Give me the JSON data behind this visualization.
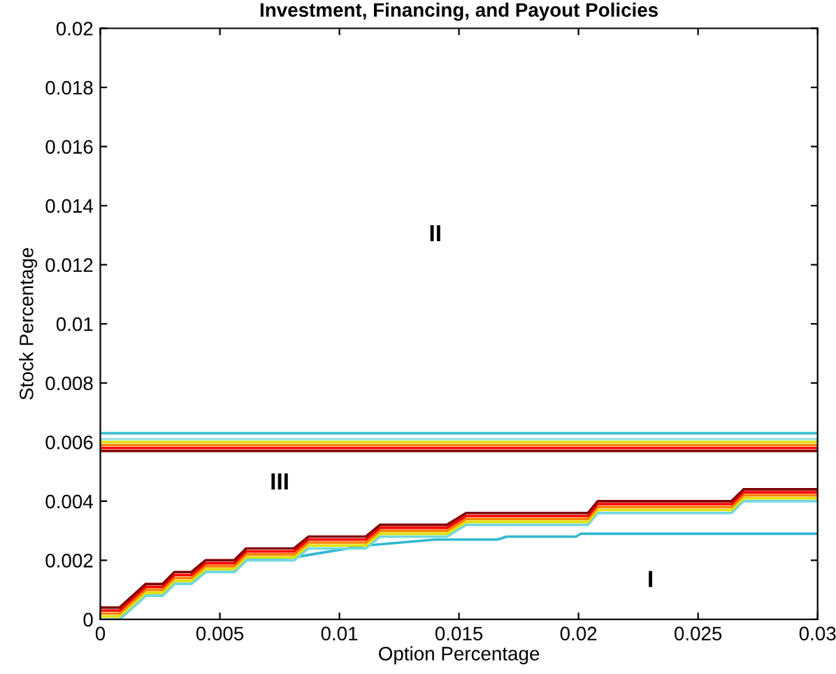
{
  "chart_data": {
    "type": "line",
    "title": "Investment, Financing, and Payout Policies",
    "xlabel": "Option Percentage",
    "ylabel": "Stock Percentage",
    "xlim": [
      0,
      0.03
    ],
    "xticks": [
      0,
      0.005,
      0.01,
      0.015,
      0.02,
      0.025,
      0.03
    ],
    "ylim": [
      0,
      0.02
    ],
    "yticks": [
      0,
      0.002,
      0.004,
      0.006,
      0.008,
      0.01,
      0.012,
      0.014,
      0.016,
      0.018,
      0.02
    ],
    "grid": false,
    "legend": false,
    "marker": "none",
    "line_style": "solid",
    "annotations": [
      "II",
      "III",
      "I"
    ],
    "series": [
      {
        "color": "#40c0d0",
        "x": [
          0,
          0.03
        ],
        "values": [
          0.0063,
          0.0063
        ]
      },
      {
        "color": "#a0e0e0",
        "x": [
          0,
          0.03
        ],
        "values": [
          0.0061,
          0.0061
        ]
      },
      {
        "color": "#e0e000",
        "x": [
          0,
          0.03
        ],
        "values": [
          0.006,
          0.006
        ]
      },
      {
        "color": "#ff8000",
        "x": [
          0,
          0.03
        ],
        "values": [
          0.0059,
          0.0059
        ]
      },
      {
        "color": "#ff0000",
        "x": [
          0,
          0.03
        ],
        "values": [
          0.0058,
          0.0058
        ]
      },
      {
        "color": "#800000",
        "x": [
          0,
          0.03
        ],
        "values": [
          0.0057,
          0.0057
        ]
      },
      {
        "color": "#30b8d0",
        "x": [
          0,
          0.0008,
          0.0019,
          0.0026,
          0.0031,
          0.0038,
          0.0044,
          0.0056,
          0.0061,
          0.0081,
          0.0111,
          0.014,
          0.0166,
          0.017,
          0.0199,
          0.0201,
          0.03
        ],
        "values": [
          0,
          0,
          0.0008,
          0.0008,
          0.0012,
          0.0012,
          0.0016,
          0.0016,
          0.002,
          0.0021,
          0.0025,
          0.0027,
          0.0027,
          0.0028,
          0.0028,
          0.0029,
          0.0029
        ]
      },
      {
        "color": "#70d8e0",
        "x": [
          0,
          0.0008,
          0.0019,
          0.0026,
          0.0031,
          0.0038,
          0.0044,
          0.0056,
          0.0061,
          0.0081,
          0.0087,
          0.0111,
          0.0117,
          0.0145,
          0.0153,
          0.0204,
          0.0208,
          0.0264,
          0.0269,
          0.03
        ],
        "values": [
          0,
          0,
          0.0008,
          0.0008,
          0.0012,
          0.0012,
          0.0016,
          0.0016,
          0.002,
          0.002,
          0.0024,
          0.0024,
          0.0028,
          0.0028,
          0.0032,
          0.0032,
          0.0036,
          0.0036,
          0.004,
          0.004
        ]
      },
      {
        "color": "#e0e000",
        "x": [
          0,
          0.0008,
          0.0019,
          0.0026,
          0.0031,
          0.0038,
          0.0044,
          0.0056,
          0.0061,
          0.0081,
          0.0087,
          0.0111,
          0.0117,
          0.0145,
          0.0153,
          0.0204,
          0.0208,
          0.0264,
          0.0269,
          0.03
        ],
        "values": [
          0.0001,
          0.0001,
          0.0009,
          0.0009,
          0.0013,
          0.0013,
          0.0017,
          0.0017,
          0.0021,
          0.0021,
          0.0025,
          0.0025,
          0.0029,
          0.0029,
          0.0033,
          0.0033,
          0.0037,
          0.0037,
          0.0041,
          0.0041
        ]
      },
      {
        "color": "#ff8000",
        "x": [
          0,
          0.0008,
          0.0019,
          0.0026,
          0.0031,
          0.0038,
          0.0044,
          0.0056,
          0.0061,
          0.0081,
          0.0087,
          0.0111,
          0.0117,
          0.0145,
          0.0153,
          0.0204,
          0.0208,
          0.0264,
          0.0269,
          0.03
        ],
        "values": [
          0.0002,
          0.0002,
          0.001,
          0.001,
          0.0014,
          0.0014,
          0.0018,
          0.0018,
          0.0022,
          0.0022,
          0.0026,
          0.0026,
          0.003,
          0.003,
          0.0034,
          0.0034,
          0.0038,
          0.0038,
          0.0042,
          0.0042
        ]
      },
      {
        "color": "#ff0000",
        "x": [
          0,
          0.0008,
          0.0019,
          0.0026,
          0.0031,
          0.0038,
          0.0044,
          0.0056,
          0.0061,
          0.0081,
          0.0087,
          0.0111,
          0.0117,
          0.0145,
          0.0153,
          0.0204,
          0.0208,
          0.0264,
          0.0269,
          0.03
        ],
        "values": [
          0.0003,
          0.0003,
          0.0011,
          0.0011,
          0.0015,
          0.0015,
          0.0019,
          0.0019,
          0.0023,
          0.0023,
          0.0027,
          0.0027,
          0.0031,
          0.0031,
          0.0035,
          0.0035,
          0.0039,
          0.0039,
          0.0043,
          0.0043
        ]
      },
      {
        "color": "#800000",
        "x": [
          0,
          0.0008,
          0.0019,
          0.0026,
          0.0031,
          0.0038,
          0.0044,
          0.0056,
          0.0061,
          0.0081,
          0.0087,
          0.0111,
          0.0117,
          0.0145,
          0.0153,
          0.0204,
          0.0208,
          0.0264,
          0.0269,
          0.03
        ],
        "values": [
          0.0004,
          0.0004,
          0.0012,
          0.0012,
          0.0016,
          0.0016,
          0.002,
          0.002,
          0.0024,
          0.0024,
          0.0028,
          0.0028,
          0.0032,
          0.0032,
          0.0036,
          0.0036,
          0.004,
          0.004,
          0.0044,
          0.0044
        ]
      }
    ]
  }
}
